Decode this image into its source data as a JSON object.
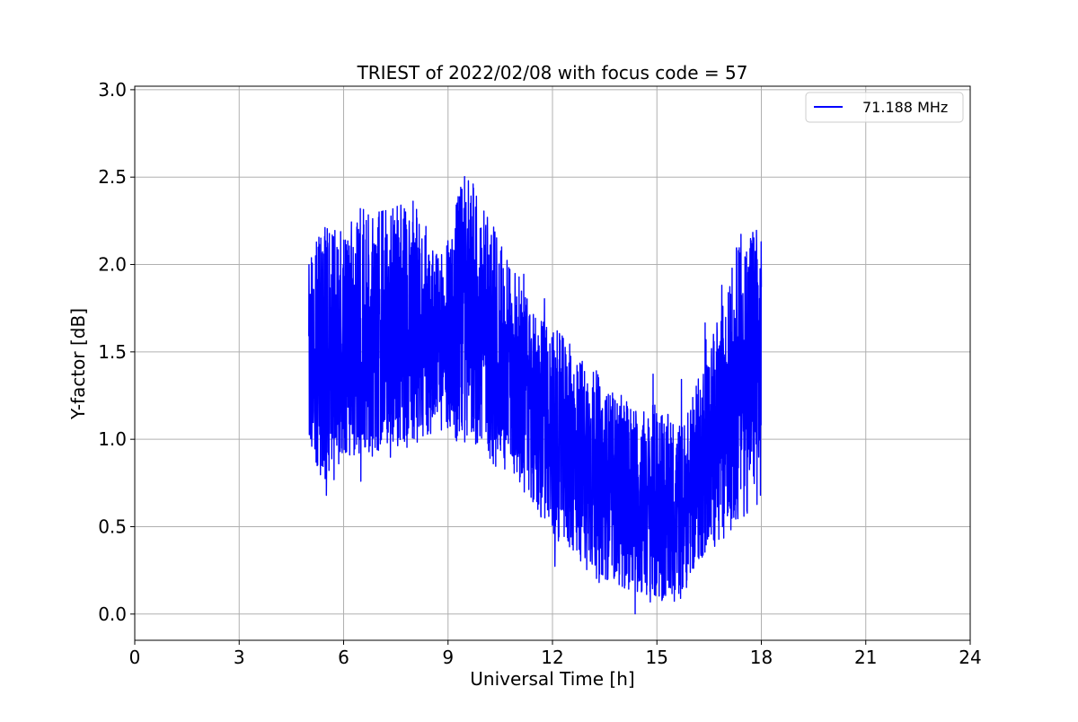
{
  "chart_data": {
    "type": "line",
    "title": "TRIEST of 2022/02/08 with focus code = 57",
    "xlabel": "Universal Time [h]",
    "ylabel": "Y-factor [dB]",
    "xlim": [
      0,
      24
    ],
    "ylim": [
      -0.15,
      3.02
    ],
    "xticks": [
      0,
      3,
      6,
      9,
      12,
      15,
      18,
      21,
      24
    ],
    "xtick_labels": [
      "0",
      "3",
      "6",
      "9",
      "12",
      "15",
      "18",
      "21",
      "24"
    ],
    "yticks": [
      0.0,
      0.5,
      1.0,
      1.5,
      2.0,
      2.5,
      3.0
    ],
    "ytick_labels": [
      "0.0",
      "0.5",
      "1.0",
      "1.5",
      "2.0",
      "2.5",
      "3.0"
    ],
    "grid": true,
    "legend_position": "top-right",
    "series": [
      {
        "name": "71.188 MHz",
        "color": "#0000ff",
        "envelope": {
          "x": [
            5.0,
            5.25,
            5.5,
            5.75,
            6.0,
            6.25,
            6.5,
            6.75,
            7.0,
            7.25,
            7.5,
            7.75,
            8.0,
            8.25,
            8.5,
            8.75,
            9.0,
            9.25,
            9.5,
            9.75,
            10.0,
            10.25,
            10.5,
            10.75,
            11.0,
            11.25,
            11.5,
            11.75,
            12.0,
            12.25,
            12.5,
            12.75,
            13.0,
            13.25,
            13.5,
            13.75,
            14.0,
            14.25,
            14.5,
            14.75,
            15.0,
            15.25,
            15.5,
            15.75,
            16.0,
            16.25,
            16.5,
            16.75,
            17.0,
            17.25,
            17.5,
            17.75,
            18.0
          ],
          "center": [
            1.45,
            1.45,
            1.5,
            1.5,
            1.55,
            1.55,
            1.6,
            1.6,
            1.6,
            1.62,
            1.65,
            1.65,
            1.65,
            1.62,
            1.58,
            1.55,
            1.6,
            1.68,
            1.72,
            1.68,
            1.62,
            1.55,
            1.48,
            1.42,
            1.35,
            1.25,
            1.18,
            1.12,
            1.05,
            1.0,
            0.95,
            0.9,
            0.85,
            0.8,
            0.75,
            0.72,
            0.7,
            0.68,
            0.65,
            0.62,
            0.62,
            0.6,
            0.58,
            0.6,
            0.72,
            0.85,
            0.95,
            1.05,
            1.15,
            1.3,
            1.4,
            1.45,
            1.4
          ],
          "amplitude": [
            0.55,
            0.7,
            0.75,
            0.7,
            0.65,
            0.7,
            0.75,
            0.7,
            0.7,
            0.7,
            0.7,
            0.7,
            0.7,
            0.65,
            0.55,
            0.5,
            0.55,
            0.7,
            0.8,
            0.75,
            0.7,
            0.7,
            0.65,
            0.6,
            0.6,
            0.6,
            0.6,
            0.6,
            0.6,
            0.6,
            0.6,
            0.6,
            0.6,
            0.6,
            0.55,
            0.55,
            0.55,
            0.55,
            0.55,
            0.55,
            0.6,
            0.55,
            0.55,
            0.5,
            0.5,
            0.55,
            0.6,
            0.65,
            0.7,
            0.8,
            0.85,
            0.85,
            0.75
          ]
        }
      }
    ]
  }
}
